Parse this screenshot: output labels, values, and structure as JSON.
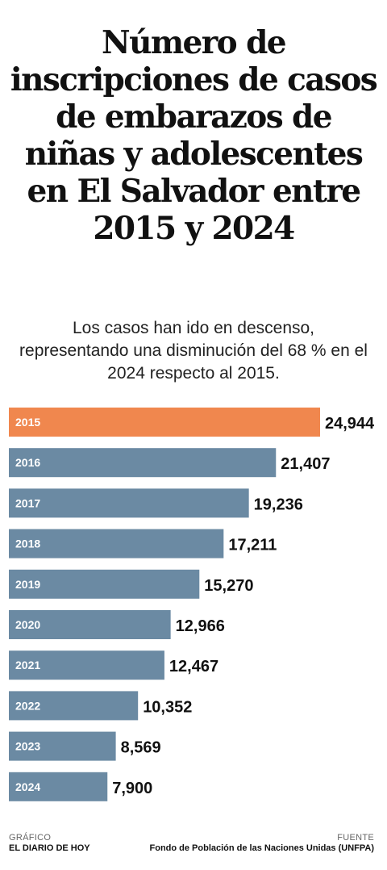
{
  "title": "Número de inscripciones de casos de embarazos de niñas y adolescentes en El Salvador entre 2015 y 2024",
  "subtitle": "Los casos han ido en descenso, representando una disminución del 68 % en el 2024 respecto al 2015.",
  "colors": {
    "highlight": "#f0874e",
    "bar": "#6b8aa3",
    "bar_label": "#ffffff",
    "value_label": "#111111"
  },
  "chart_data": {
    "type": "bar",
    "orientation": "horizontal",
    "categories": [
      "2015",
      "2016",
      "2017",
      "2018",
      "2019",
      "2020",
      "2021",
      "2022",
      "2023",
      "2024"
    ],
    "values": [
      24944,
      21407,
      19236,
      17211,
      15270,
      12966,
      12467,
      10352,
      8569,
      7900
    ],
    "value_labels": [
      "24,944",
      "21,407",
      "19,236",
      "17,211",
      "15,270",
      "12,966",
      "12,467",
      "10,352",
      "8,569",
      "7,900"
    ],
    "highlight_category": "2015",
    "title": "",
    "xlabel": "",
    "ylabel": "",
    "xlim": [
      0,
      24944
    ]
  },
  "footer": {
    "left_label": "GRÁFICO",
    "left_value": "EL DIARIO DE HOY",
    "right_label": "FUENTE",
    "right_value": "Fondo de Población de las Naciones Unidas (UNFPA)"
  }
}
